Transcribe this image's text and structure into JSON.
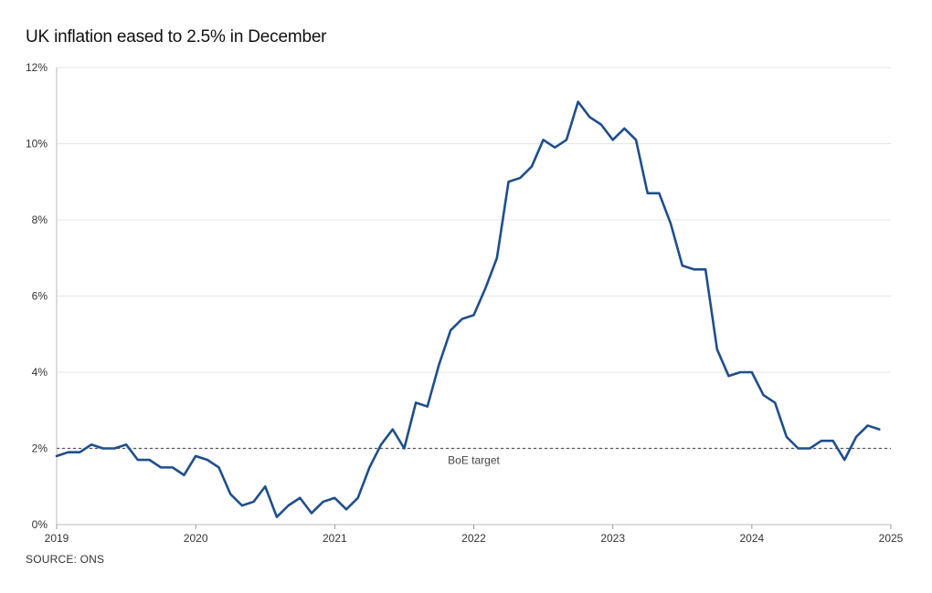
{
  "chart_data": {
    "type": "line",
    "title": "UK inflation eased to 2.5% in December",
    "source": "SOURCE: ONS",
    "xlabel": "",
    "ylabel": "",
    "xlim": [
      2019,
      2025
    ],
    "ylim": [
      0,
      12
    ],
    "y_ticks": [
      0,
      2,
      4,
      6,
      8,
      10,
      12
    ],
    "y_tick_labels": [
      "0%",
      "2%",
      "4%",
      "6%",
      "8%",
      "10%",
      "12%"
    ],
    "x_ticks": [
      2019,
      2020,
      2021,
      2022,
      2023,
      2024,
      2025
    ],
    "x_tick_labels": [
      "2019",
      "2020",
      "2021",
      "2022",
      "2023",
      "2024",
      "2025"
    ],
    "grid": true,
    "line_color": "#1f4e8c",
    "reference_line": {
      "value": 2,
      "label": "BoE target",
      "label_x": 2022,
      "color": "#555555"
    },
    "series": [
      {
        "values": [
          1.8,
          1.9,
          1.9,
          2.1,
          2.0,
          2.0,
          2.1,
          1.7,
          1.7,
          1.5,
          1.5,
          1.3,
          1.8,
          1.7,
          1.5,
          0.8,
          0.5,
          0.6,
          1.0,
          0.2,
          0.5,
          0.7,
          0.3,
          0.6,
          0.7,
          0.4,
          0.7,
          1.5,
          2.1,
          2.5,
          2.0,
          3.2,
          3.1,
          4.2,
          5.1,
          5.4,
          5.5,
          6.2,
          7.0,
          9.0,
          9.1,
          9.4,
          10.1,
          9.9,
          10.1,
          11.1,
          10.7,
          10.5,
          10.1,
          10.4,
          10.1,
          8.7,
          8.7,
          7.9,
          6.8,
          6.7,
          6.7,
          4.6,
          3.9,
          4.0,
          4.0,
          3.4,
          3.2,
          2.3,
          2.0,
          2.0,
          2.2,
          2.2,
          1.7,
          2.3,
          2.6,
          2.5
        ]
      }
    ]
  }
}
